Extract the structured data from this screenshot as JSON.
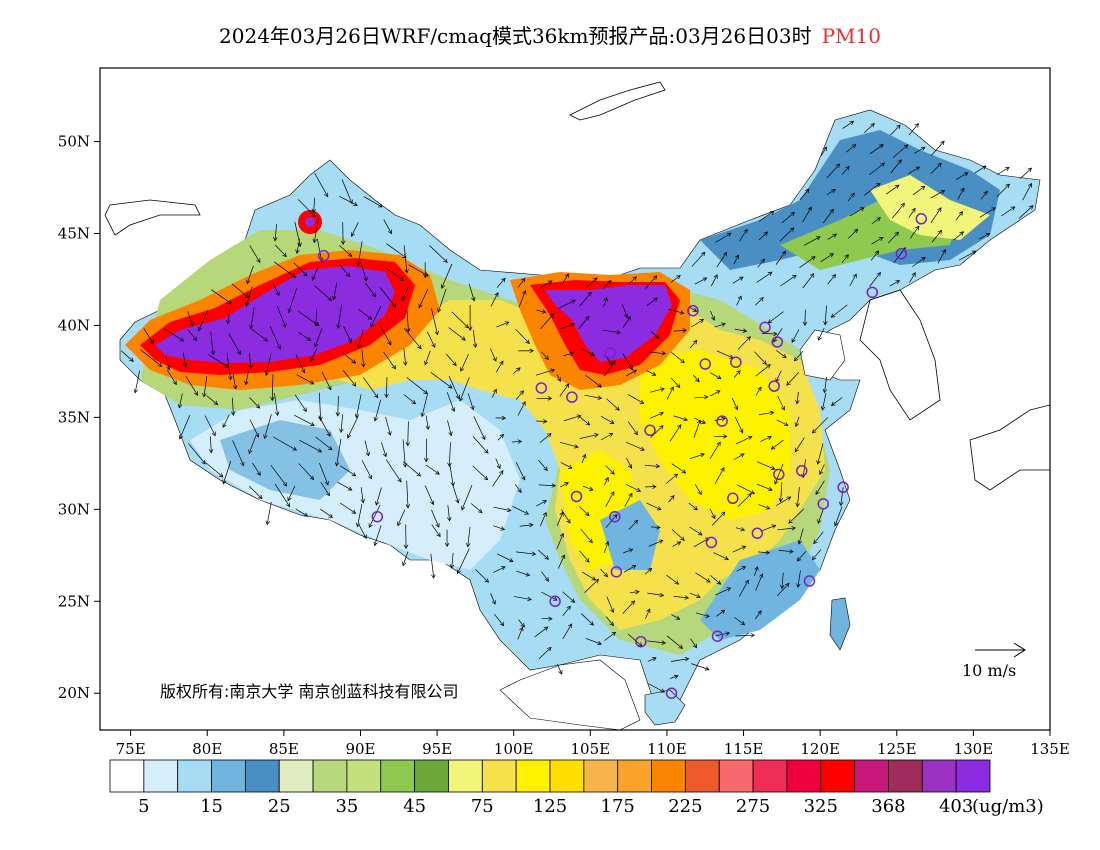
{
  "header": {
    "title": "2024年03月26日WRF/cmaq模式36km预报产品:03月26日03时",
    "pollutant": "PM10"
  },
  "axes": {
    "lat_labels": [
      "50N",
      "45N",
      "40N",
      "35N",
      "30N",
      "25N",
      "20N"
    ],
    "lon_labels": [
      "75E",
      "80E",
      "85E",
      "90E",
      "95E",
      "100E",
      "105E",
      "110E",
      "115E",
      "120E",
      "125E",
      "130E",
      "135E"
    ],
    "lat_values": [
      50,
      45,
      40,
      35,
      30,
      25,
      20
    ],
    "lon_values": [
      75,
      80,
      85,
      90,
      95,
      100,
      105,
      110,
      115,
      120,
      125,
      130,
      135
    ],
    "lon_range": [
      73,
      135
    ],
    "lat_range": [
      18,
      54
    ]
  },
  "wind_scale": {
    "label": "10 m/s"
  },
  "copyright": {
    "text": "版权所有:南京大学 南京创蓝科技有限公司"
  },
  "legend": {
    "colors": [
      "#ffffff",
      "#d4eefb",
      "#a6dcf4",
      "#6fb5e0",
      "#4a8fc4",
      "#e0ecbd",
      "#b6d77a",
      "#c4e07c",
      "#8fc94f",
      "#6aa638",
      "#f1f67a",
      "#f5e14b",
      "#fff200",
      "#ffde00",
      "#f6b44a",
      "#fba32a",
      "#fb8400",
      "#ef5a2c",
      "#f9696c",
      "#ef2d55",
      "#f0003c",
      "#ff0000",
      "#c8177a",
      "#a02c5a",
      "#9b32c4",
      "#8b2ce0"
    ],
    "tick_labels": [
      "5",
      "15",
      "25",
      "35",
      "45",
      "75",
      "125",
      "175",
      "225",
      "275",
      "325",
      "368",
      "403"
    ],
    "unit": "(ug/m3)"
  },
  "stations": [
    [
      126.6,
      45.8
    ],
    [
      125.3,
      43.9
    ],
    [
      123.4,
      41.8
    ],
    [
      116.4,
      39.9
    ],
    [
      117.2,
      39.1
    ],
    [
      114.5,
      38.0
    ],
    [
      112.5,
      37.9
    ],
    [
      111.7,
      40.8
    ],
    [
      117.0,
      36.7
    ],
    [
      113.6,
      34.8
    ],
    [
      108.9,
      34.3
    ],
    [
      106.3,
      38.5
    ],
    [
      103.8,
      36.1
    ],
    [
      101.8,
      36.6
    ],
    [
      87.6,
      43.8
    ],
    [
      91.1,
      29.6
    ],
    [
      104.1,
      30.7
    ],
    [
      106.6,
      29.6
    ],
    [
      106.7,
      26.6
    ],
    [
      102.7,
      25.0
    ],
    [
      108.3,
      22.8
    ],
    [
      113.3,
      23.1
    ],
    [
      110.3,
      20.0
    ],
    [
      119.3,
      26.1
    ],
    [
      112.9,
      28.2
    ],
    [
      115.9,
      28.7
    ],
    [
      114.3,
      30.6
    ],
    [
      117.3,
      31.9
    ],
    [
      118.8,
      32.1
    ],
    [
      120.2,
      30.3
    ],
    [
      121.5,
      31.2
    ]
  ]
}
